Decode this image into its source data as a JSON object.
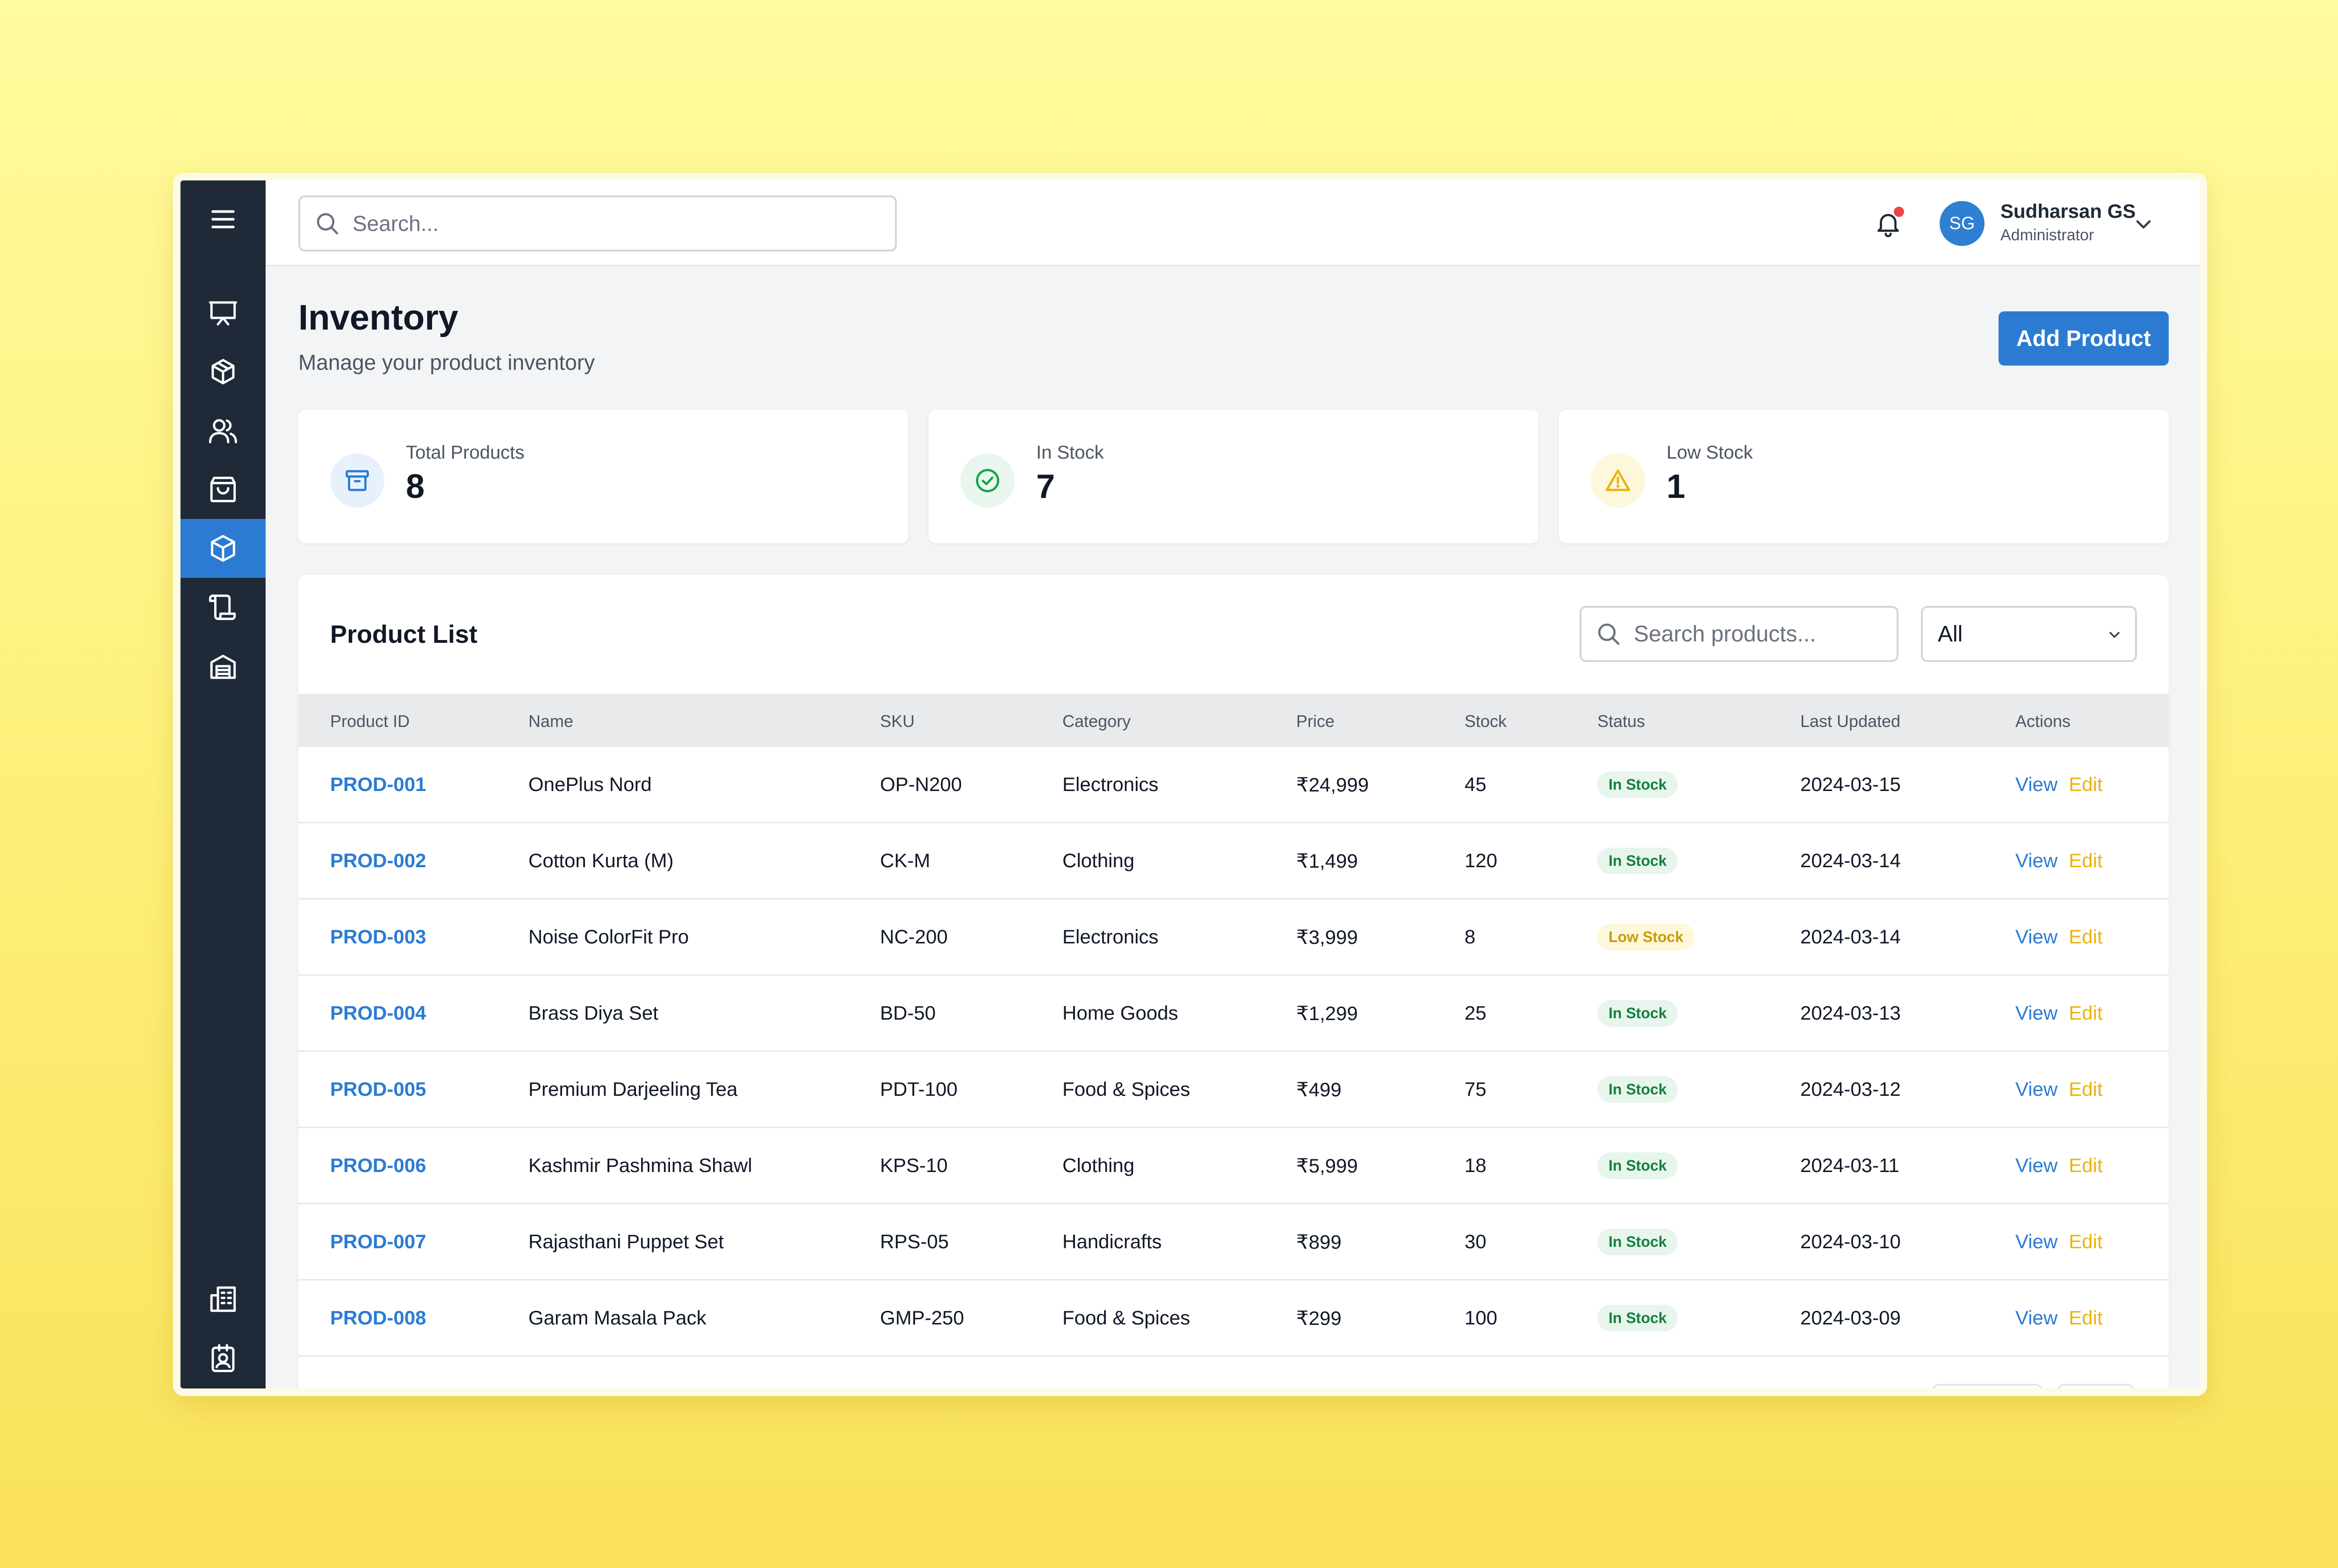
{
  "header": {
    "search_placeholder": "Search...",
    "user": {
      "name": "Sudharsan GS",
      "role": "Administrator",
      "initials": "SG"
    }
  },
  "sidebar": {
    "items": [
      {
        "icon": "menu-icon"
      },
      {
        "icon": "presentation-icon"
      },
      {
        "icon": "package-icon"
      },
      {
        "icon": "users-icon"
      },
      {
        "icon": "shopping-bag-icon"
      },
      {
        "icon": "cube-icon",
        "active": true
      },
      {
        "icon": "scroll-icon"
      },
      {
        "icon": "warehouse-icon"
      },
      {
        "icon": "building-icon"
      },
      {
        "icon": "id-badge-icon"
      },
      {
        "icon": "user-circle-icon"
      },
      {
        "icon": "power-icon"
      }
    ]
  },
  "page": {
    "title": "Inventory",
    "subtitle": "Manage your product inventory",
    "add_button": "Add Product"
  },
  "stats": [
    {
      "label": "Total Products",
      "value": "8",
      "icon": "archive-icon",
      "color": "#2b7bd3"
    },
    {
      "label": "In Stock",
      "value": "7",
      "icon": "check-circle-icon",
      "color": "#16a34a"
    },
    {
      "label": "Low Stock",
      "value": "1",
      "icon": "alert-triangle-icon",
      "color": "#eab308"
    }
  ],
  "product_list": {
    "title": "Product List",
    "search_placeholder": "Search products...",
    "filter_value": "All",
    "columns": [
      "Product ID",
      "Name",
      "SKU",
      "Category",
      "Price",
      "Stock",
      "Status",
      "Last Updated",
      "Actions"
    ],
    "view_label": "View",
    "edit_label": "Edit",
    "rows": [
      {
        "id": "PROD-001",
        "name": "OnePlus Nord",
        "sku": "OP-N200",
        "category": "Electronics",
        "price": "₹24,999",
        "stock": "45",
        "status": "In Stock",
        "updated": "2024-03-15"
      },
      {
        "id": "PROD-002",
        "name": "Cotton Kurta (M)",
        "sku": "CK-M",
        "category": "Clothing",
        "price": "₹1,499",
        "stock": "120",
        "status": "In Stock",
        "updated": "2024-03-14"
      },
      {
        "id": "PROD-003",
        "name": "Noise ColorFit Pro",
        "sku": "NC-200",
        "category": "Electronics",
        "price": "₹3,999",
        "stock": "8",
        "status": "Low Stock",
        "updated": "2024-03-14"
      },
      {
        "id": "PROD-004",
        "name": "Brass Diya Set",
        "sku": "BD-50",
        "category": "Home Goods",
        "price": "₹1,299",
        "stock": "25",
        "status": "In Stock",
        "updated": "2024-03-13"
      },
      {
        "id": "PROD-005",
        "name": "Premium Darjeeling Tea",
        "sku": "PDT-100",
        "category": "Food & Spices",
        "price": "₹499",
        "stock": "75",
        "status": "In Stock",
        "updated": "2024-03-12"
      },
      {
        "id": "PROD-006",
        "name": "Kashmir Pashmina Shawl",
        "sku": "KPS-10",
        "category": "Clothing",
        "price": "₹5,999",
        "stock": "18",
        "status": "In Stock",
        "updated": "2024-03-11"
      },
      {
        "id": "PROD-007",
        "name": "Rajasthani Puppet Set",
        "sku": "RPS-05",
        "category": "Handicrafts",
        "price": "₹899",
        "stock": "30",
        "status": "In Stock",
        "updated": "2024-03-10"
      },
      {
        "id": "PROD-008",
        "name": "Garam Masala Pack",
        "sku": "GMP-250",
        "category": "Food & Spices",
        "price": "₹299",
        "stock": "100",
        "status": "In Stock",
        "updated": "2024-03-09"
      }
    ]
  }
}
